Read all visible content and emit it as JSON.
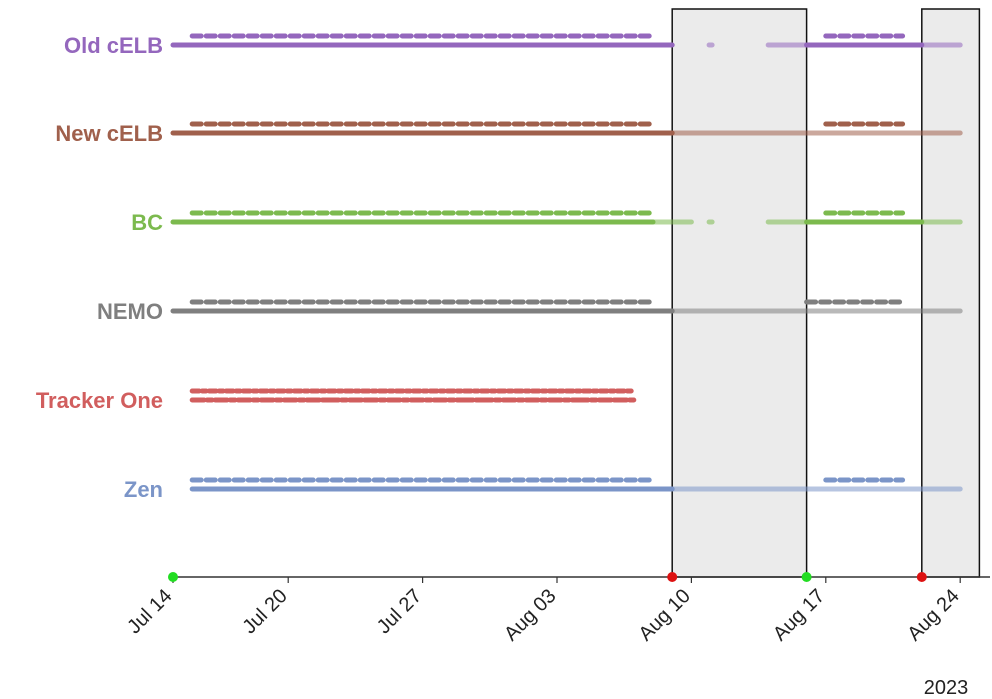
{
  "chart_data": {
    "type": "timeline",
    "title": "",
    "xlabel": "",
    "ylabel": "",
    "x_axis": {
      "start": "2023-07-14",
      "end": "2023-08-25",
      "ticks": [
        {
          "date": "2023-07-14",
          "label": "Jul 14"
        },
        {
          "date": "2023-07-20",
          "label": "Jul 20"
        },
        {
          "date": "2023-07-27",
          "label": "Jul 27"
        },
        {
          "date": "2023-08-03",
          "label": "Aug 03"
        },
        {
          "date": "2023-08-10",
          "label": "Aug 10"
        },
        {
          "date": "2023-08-17",
          "label": "Aug 17"
        },
        {
          "date": "2023-08-24",
          "label": "Aug 24"
        }
      ],
      "year_label": "2023"
    },
    "markers": [
      {
        "date": "2023-07-14",
        "color": "#22dd22"
      },
      {
        "date": "2023-08-09",
        "color": "#dd1111"
      },
      {
        "date": "2023-08-16",
        "color": "#22dd22"
      },
      {
        "date": "2023-08-22",
        "color": "#dd1111"
      }
    ],
    "shaded_regions": [
      {
        "start": "2023-08-09",
        "end": "2023-08-16"
      },
      {
        "start": "2023-08-22",
        "end": "2023-08-25"
      }
    ],
    "series": [
      {
        "name": "Old cELB",
        "color": "#9467bd",
        "segments": [
          {
            "start": "2023-07-14",
            "end": "2023-08-09",
            "style": "solid"
          },
          {
            "start": "2023-08-11",
            "end": "2023-08-11",
            "style": "faded"
          },
          {
            "start": "2023-08-14",
            "end": "2023-08-16",
            "style": "faded"
          },
          {
            "start": "2023-08-16",
            "end": "2023-08-22",
            "style": "solid"
          },
          {
            "start": "2023-08-22",
            "end": "2023-08-24",
            "style": "faded"
          },
          {
            "start": "2023-07-15",
            "end": "2023-08-08",
            "style": "dashed"
          },
          {
            "start": "2023-08-17",
            "end": "2023-08-21",
            "style": "dashed"
          }
        ]
      },
      {
        "name": "New cELB",
        "color": "#a0604c",
        "segments": [
          {
            "start": "2023-07-14",
            "end": "2023-08-09",
            "style": "solid"
          },
          {
            "start": "2023-08-09",
            "end": "2023-08-24",
            "style": "faded"
          },
          {
            "start": "2023-07-15",
            "end": "2023-08-08",
            "style": "dashed"
          },
          {
            "start": "2023-08-17",
            "end": "2023-08-21",
            "style": "dashed"
          }
        ]
      },
      {
        "name": "BC",
        "color": "#7cba4e",
        "segments": [
          {
            "start": "2023-07-14",
            "end": "2023-08-08",
            "style": "solid"
          },
          {
            "start": "2023-08-08",
            "end": "2023-08-10",
            "style": "faded"
          },
          {
            "start": "2023-08-11",
            "end": "2023-08-11",
            "style": "faded"
          },
          {
            "start": "2023-08-14",
            "end": "2023-08-16",
            "style": "faded"
          },
          {
            "start": "2023-08-16",
            "end": "2023-08-22",
            "style": "solid"
          },
          {
            "start": "2023-08-22",
            "end": "2023-08-24",
            "style": "faded"
          },
          {
            "start": "2023-07-15",
            "end": "2023-08-08",
            "style": "dashed"
          },
          {
            "start": "2023-08-17",
            "end": "2023-08-21",
            "style": "dashed"
          }
        ]
      },
      {
        "name": "NEMO",
        "color": "#7f7f7f",
        "segments": [
          {
            "start": "2023-07-14",
            "end": "2023-08-09",
            "style": "solid"
          },
          {
            "start": "2023-08-09",
            "end": "2023-08-24",
            "style": "faded"
          },
          {
            "start": "2023-07-15",
            "end": "2023-08-08",
            "style": "dashed"
          },
          {
            "start": "2023-08-16",
            "end": "2023-08-21",
            "style": "dashed"
          }
        ]
      },
      {
        "name": "Tracker One",
        "color": "#d15e5e",
        "segments": [
          {
            "start": "2023-07-15",
            "end": "2023-07-21",
            "style": "solid"
          },
          {
            "start": "2023-07-21",
            "end": "2023-07-22",
            "style": "solid"
          },
          {
            "start": "2023-07-22",
            "end": "2023-07-24",
            "style": "solid"
          },
          {
            "start": "2023-07-24",
            "end": "2023-07-29",
            "style": "solid"
          },
          {
            "start": "2023-07-29",
            "end": "2023-07-30",
            "style": "solid"
          },
          {
            "start": "2023-07-30",
            "end": "2023-08-04",
            "style": "solid"
          },
          {
            "start": "2023-08-04",
            "end": "2023-08-06",
            "style": "solid"
          },
          {
            "start": "2023-08-06",
            "end": "2023-08-07",
            "style": "solid"
          },
          {
            "start": "2023-07-15",
            "end": "2023-08-07",
            "style": "dashed"
          }
        ]
      },
      {
        "name": "Zen",
        "color": "#7b95c8",
        "segments": [
          {
            "start": "2023-07-15",
            "end": "2023-08-09",
            "style": "solid"
          },
          {
            "start": "2023-08-09",
            "end": "2023-08-24",
            "style": "faded"
          },
          {
            "start": "2023-07-15",
            "end": "2023-08-08",
            "style": "dashed"
          },
          {
            "start": "2023-08-17",
            "end": "2023-08-21",
            "style": "dashed"
          }
        ]
      }
    ]
  }
}
